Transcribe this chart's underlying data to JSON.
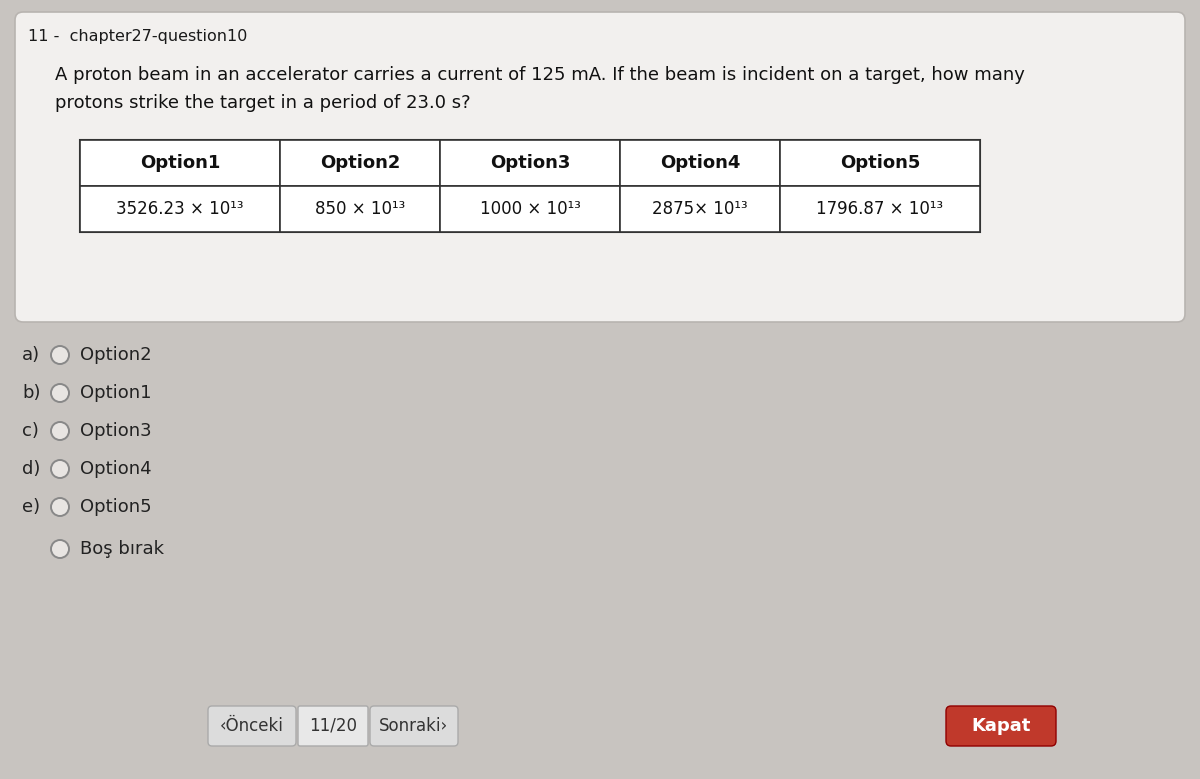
{
  "title_prefix": "11 - ",
  "title_main": "chapter27-question10",
  "question_line1": "A proton beam in an accelerator carries a current of 125 mA. If the beam is incident on a target, how many",
  "question_line2": "protons strike the target in a period of 23.0 s?",
  "table_headers": [
    "Option1",
    "Option2",
    "Option3",
    "Option4",
    "Option5"
  ],
  "table_values": [
    "3526.23 × 10¹³",
    "850 × 10¹³",
    "1000 × 10¹³",
    "2875× 10¹³",
    "1796.87 × 10¹³"
  ],
  "options": [
    {
      "label": "a)",
      "text": "Option2"
    },
    {
      "label": "b)",
      "text": "Option1"
    },
    {
      "label": "c)",
      "text": "Option3"
    },
    {
      "label": "d)",
      "text": "Option4"
    },
    {
      "label": "e)",
      "text": "Option5"
    }
  ],
  "extra_option": "Boş bırak",
  "nav_prev": "‹Önceki",
  "nav_page": "11/20",
  "nav_next": "Sonraki›",
  "nav_close": "Kapat",
  "bg_color": "#c8c4c0",
  "card_color": "#f2f0ee",
  "close_btn_color": "#c0392b",
  "close_btn_text_color": "#ffffff"
}
